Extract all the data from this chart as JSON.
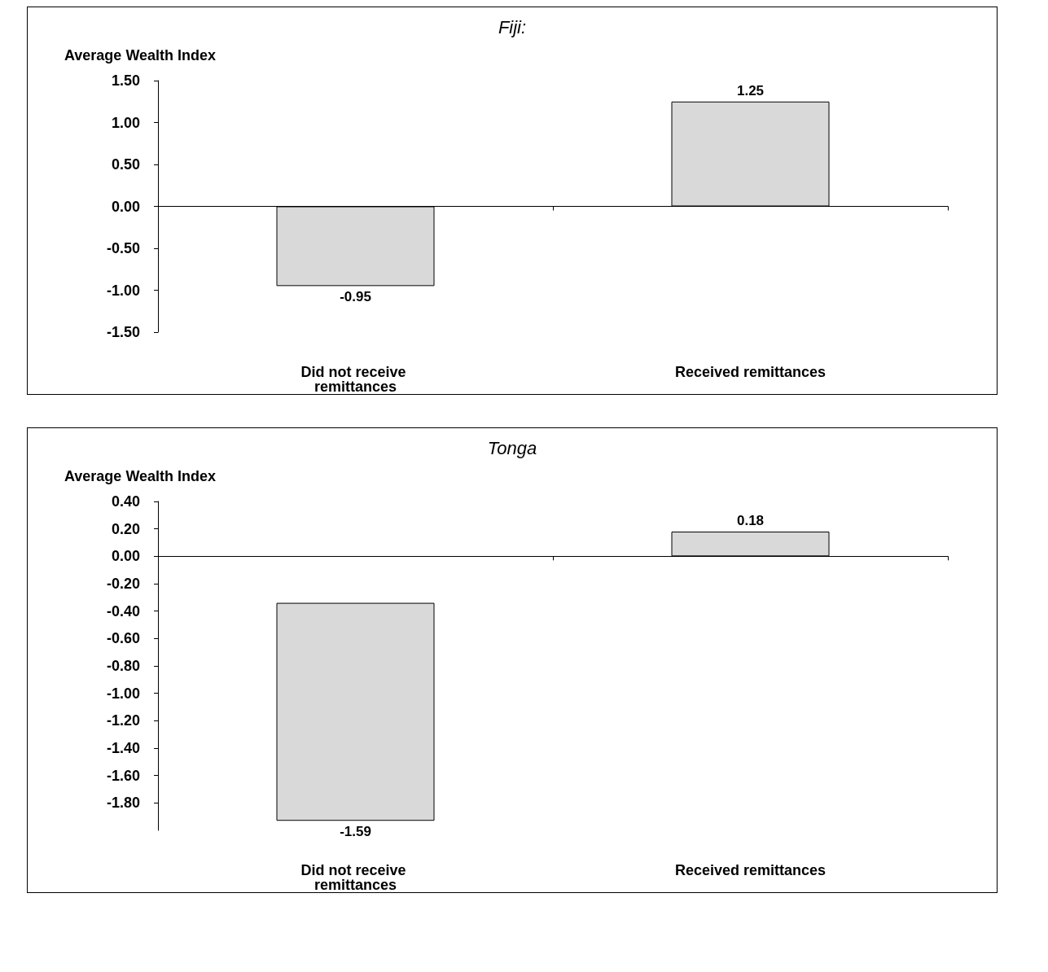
{
  "chart_data": [
    {
      "type": "bar",
      "title": "Fiji:",
      "ylabel": "Average Wealth Index",
      "categories": [
        "Did not receive remittances",
        "Received remittances"
      ],
      "values": [
        -0.95,
        1.25
      ],
      "color": "#d9d9d9",
      "data_labels": true,
      "ylim": [
        -1.5,
        1.5
      ],
      "yticks": [
        {
          "value": -1.5,
          "label": "-1.50"
        },
        {
          "value": -1,
          "label": "-1.00"
        },
        {
          "value": -0.5,
          "label": "-0.50"
        },
        {
          "value": 0,
          "label": "0.00"
        },
        {
          "value": 0.5,
          "label": "0.50"
        },
        {
          "value": 1,
          "label": "1.00"
        },
        {
          "value": 1.5,
          "label": "1.50"
        }
      ]
    },
    {
      "type": "bar",
      "title": "Tonga",
      "ylabel": "Average Wealth Index",
      "categories": [
        "Did not receive remittances",
        "Received remittances"
      ],
      "values": [
        -1.59,
        0.18
      ],
      "base": [
        -0.34,
        0
      ],
      "color": "#d9d9d9",
      "data_labels": true,
      "ylim": [
        -2,
        0.4
      ],
      "yticks": [
        {
          "value": -1.8,
          "label": "-1.80"
        },
        {
          "value": -1.6,
          "label": "-1.60"
        },
        {
          "value": -1.4,
          "label": "-1.40"
        },
        {
          "value": -1.2,
          "label": "-1.20"
        },
        {
          "value": -1,
          "label": "-1.00"
        },
        {
          "value": -0.8,
          "label": "-0.80"
        },
        {
          "value": -0.6,
          "label": "-0.60"
        },
        {
          "value": -0.4,
          "label": "-0.40"
        },
        {
          "value": -0.2,
          "label": "-0.20"
        },
        {
          "value": 0,
          "label": "0.00"
        },
        {
          "value": 0.2,
          "label": "0.20"
        },
        {
          "value": 0.4,
          "label": "0.40"
        }
      ]
    }
  ]
}
